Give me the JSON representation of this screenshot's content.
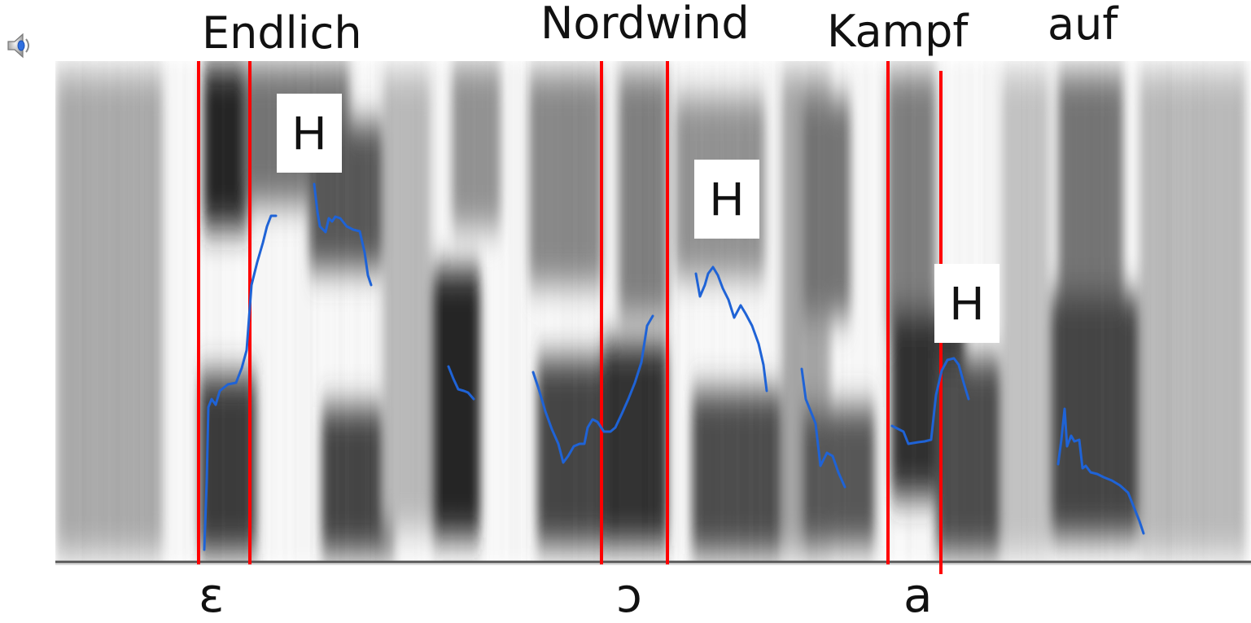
{
  "words": [
    "Endlich",
    "Nordwind",
    "Kampf",
    "auf"
  ],
  "phones": [
    "ɛ",
    "ɔ",
    "a"
  ],
  "tones": [
    "H",
    "H",
    "H"
  ],
  "icons": {
    "audio": "speaker-icon"
  },
  "colors": {
    "boundary": "#ff0000",
    "pitch": "#1f63d6",
    "label_box": "#ffffff"
  }
}
